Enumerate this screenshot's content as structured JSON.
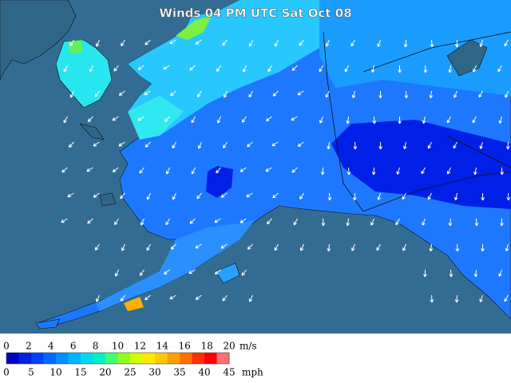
{
  "title": "Winds 04 PM UTC Sat Oct 08",
  "legend": {
    "ms_unit": "m/s",
    "ms_labels": [
      "0",
      "2",
      "4",
      "6",
      "8",
      "10",
      "12",
      "14",
      "16",
      "18",
      "20"
    ],
    "mph_unit": "mph",
    "mph_labels": [
      "0",
      "5",
      "10",
      "15",
      "20",
      "25",
      "30",
      "35",
      "40",
      "45"
    ],
    "colors": [
      "#0000c8",
      "#0020e0",
      "#0040f8",
      "#0068ff",
      "#0090ff",
      "#00b4ff",
      "#00d8f0",
      "#00f0c8",
      "#40ff70",
      "#90ff20",
      "#d0ff00",
      "#ffe800",
      "#ffc800",
      "#ffa000",
      "#ff7000",
      "#ff3000",
      "#ff0000",
      "#ff7070"
    ]
  }
}
